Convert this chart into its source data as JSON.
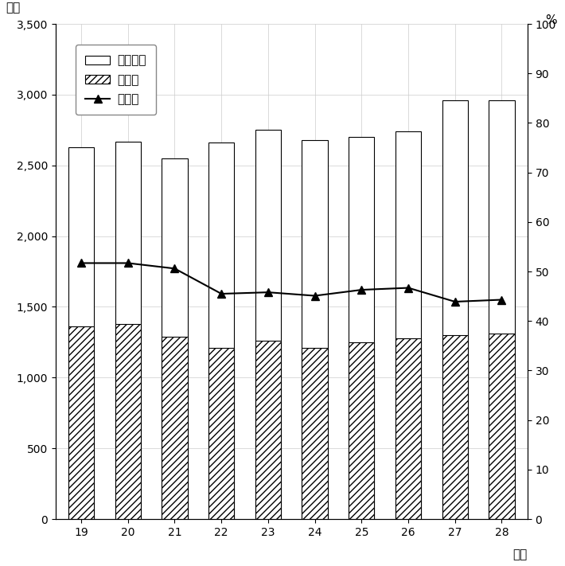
{
  "years": [
    19,
    20,
    21,
    22,
    23,
    24,
    25,
    26,
    27,
    28
  ],
  "sainyuu": [
    2630,
    2670,
    2550,
    2660,
    2750,
    2680,
    2700,
    2740,
    2960,
    2960
  ],
  "shizei": [
    1360,
    1380,
    1290,
    1210,
    1260,
    1210,
    1250,
    1280,
    1300,
    1310
  ],
  "kousei": [
    51.7,
    51.7,
    50.6,
    45.5,
    45.8,
    45.1,
    46.3,
    46.7,
    43.9,
    44.3
  ],
  "left_ylim": [
    0,
    3500
  ],
  "right_ylim": [
    0,
    100
  ],
  "left_yticks": [
    0,
    500,
    1000,
    1500,
    2000,
    2500,
    3000,
    3500
  ],
  "right_yticks": [
    0,
    10,
    20,
    30,
    40,
    50,
    60,
    70,
    80,
    90,
    100
  ],
  "left_ylabel": "億円",
  "right_ylabel": "%",
  "xlabel": "年度",
  "legend_labels": [
    "歳入総額",
    "市　税",
    "構成比"
  ],
  "bar_width": 0.55,
  "hatch_pattern": "////",
  "line_color": "#000000",
  "line_marker": "^",
  "bar_edge_color": "#000000",
  "sainyuu_facecolor": "#ffffff",
  "shizei_facecolor": "#ffffff",
  "grid_color": "#cccccc",
  "figsize": [
    7.1,
    7.11
  ],
  "dpi": 100
}
